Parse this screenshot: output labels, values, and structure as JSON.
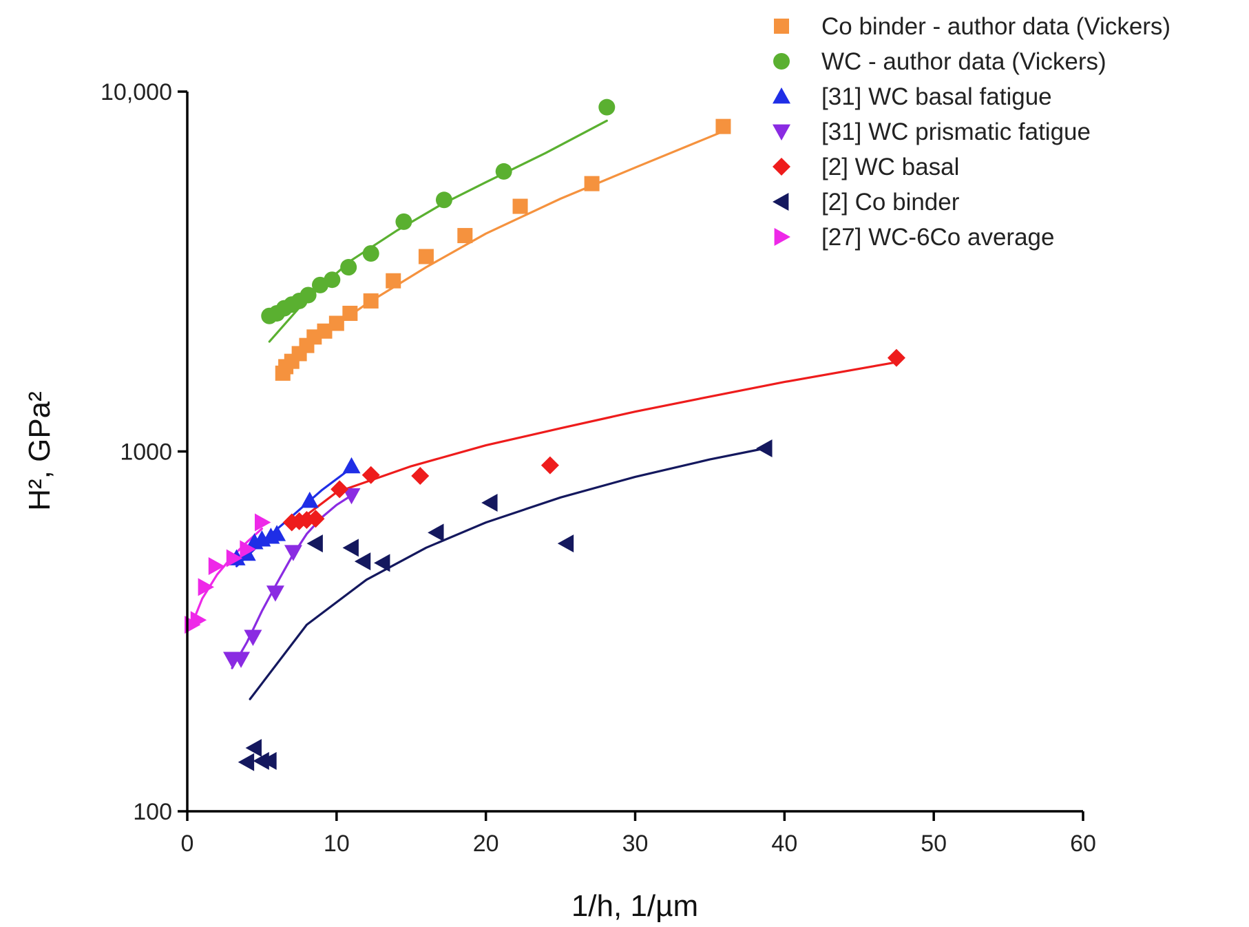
{
  "chart_data": {
    "type": "scatter",
    "title": "",
    "xlabel": "1/h, 1/µm",
    "ylabel": "H², GPa²",
    "xscale": "linear",
    "yscale": "log",
    "xlim": [
      0,
      60
    ],
    "ylim": [
      100,
      10000
    ],
    "x_ticks": [
      0,
      10,
      20,
      30,
      40,
      50,
      60
    ],
    "x_tick_labels": [
      "0",
      "10",
      "20",
      "30",
      "40",
      "50",
      "60"
    ],
    "y_ticks": [
      100,
      1000,
      10000
    ],
    "y_tick_labels": [
      "100",
      "1000",
      "10,000"
    ],
    "grid": false,
    "legend_position": "top-right",
    "series": [
      {
        "name": "Co binder - author data (Vickers)",
        "marker": "square",
        "color": "#f5923e",
        "points": [
          [
            6.4,
            1650
          ],
          [
            6.6,
            1720
          ],
          [
            7.0,
            1780
          ],
          [
            7.5,
            1870
          ],
          [
            8.0,
            1970
          ],
          [
            8.5,
            2080
          ],
          [
            9.2,
            2160
          ],
          [
            10.0,
            2270
          ],
          [
            10.9,
            2420
          ],
          [
            12.3,
            2620
          ],
          [
            13.8,
            2980
          ],
          [
            16.0,
            3480
          ],
          [
            18.6,
            3980
          ],
          [
            22.3,
            4800
          ],
          [
            27.1,
            5550
          ],
          [
            35.9,
            8000
          ]
        ],
        "fit": {
          "x": [
            6.4,
            9,
            12,
            16,
            20,
            25,
            30,
            35.9
          ],
          "y": [
            1650,
            2100,
            2570,
            3250,
            4030,
            5040,
            6150,
            7750
          ]
        }
      },
      {
        "name": "WC - author data (Vickers)",
        "marker": "circle",
        "color": "#5ab030",
        "points": [
          [
            5.5,
            2380
          ],
          [
            6.0,
            2420
          ],
          [
            6.5,
            2500
          ],
          [
            7.0,
            2560
          ],
          [
            7.5,
            2620
          ],
          [
            8.1,
            2720
          ],
          [
            8.9,
            2900
          ],
          [
            9.7,
            3000
          ],
          [
            10.8,
            3250
          ],
          [
            12.3,
            3550
          ],
          [
            14.5,
            4350
          ],
          [
            17.2,
            5000
          ],
          [
            21.2,
            6000
          ],
          [
            28.1,
            9050
          ]
        ],
        "fit": {
          "x": [
            5.5,
            8,
            11,
            14,
            17,
            20,
            24,
            28.1
          ],
          "y": [
            2020,
            2650,
            3400,
            4100,
            4850,
            5600,
            6750,
            8300
          ]
        }
      },
      {
        "name": "[31] WC basal fatigue",
        "marker": "triangle-up",
        "color": "#1f2ee6",
        "points": [
          [
            3.3,
            505
          ],
          [
            4.0,
            520
          ],
          [
            4.5,
            560
          ],
          [
            5.0,
            570
          ],
          [
            5.6,
            580
          ],
          [
            6.0,
            590
          ],
          [
            8.2,
            730
          ],
          [
            11.0,
            910
          ]
        ],
        "fit": {
          "x": [
            3.3,
            5,
            7,
            9,
            11
          ],
          "y": [
            480,
            560,
            660,
            780,
            900
          ]
        }
      },
      {
        "name": "[31] WC prismatic fatigue",
        "marker": "triangle-down",
        "color": "#8a2be2",
        "points": [
          [
            3.0,
            265
          ],
          [
            3.6,
            265
          ],
          [
            4.4,
            305
          ],
          [
            5.9,
            405
          ],
          [
            7.1,
            525
          ],
          [
            11.0,
            755
          ]
        ],
        "fit": {
          "x": [
            3.0,
            4,
            5,
            6,
            7,
            8,
            9,
            10,
            11
          ],
          "y": [
            250,
            295,
            360,
            430,
            510,
            590,
            655,
            710,
            755
          ]
        }
      },
      {
        "name": "[2] WC basal",
        "marker": "diamond",
        "color": "#ee1c1c",
        "points": [
          [
            7.0,
            635
          ],
          [
            7.5,
            640
          ],
          [
            8.0,
            645
          ],
          [
            8.6,
            650
          ],
          [
            10.2,
            785
          ],
          [
            12.3,
            860
          ],
          [
            15.6,
            855
          ],
          [
            24.3,
            915
          ],
          [
            47.5,
            1820
          ]
        ],
        "fit": {
          "x": [
            7,
            10,
            15,
            20,
            25,
            30,
            35,
            40,
            47.5
          ],
          "y": [
            620,
            770,
            910,
            1040,
            1160,
            1290,
            1420,
            1560,
            1770
          ]
        }
      },
      {
        "name": "[2] Co binder",
        "marker": "triangle-left",
        "color": "#14185e",
        "points": [
          [
            4.0,
            137
          ],
          [
            4.5,
            150
          ],
          [
            5.0,
            138
          ],
          [
            5.5,
            138
          ],
          [
            8.6,
            555
          ],
          [
            11.0,
            540
          ],
          [
            11.8,
            495
          ],
          [
            13.1,
            490
          ],
          [
            16.7,
            595
          ],
          [
            20.3,
            720
          ],
          [
            25.4,
            555
          ],
          [
            38.7,
            1020
          ]
        ],
        "fit": {
          "x": [
            4.2,
            8,
            12,
            16,
            20,
            25,
            30,
            35,
            38.7
          ],
          "y": [
            205,
            330,
            440,
            540,
            635,
            745,
            850,
            950,
            1020
          ]
        }
      },
      {
        "name": "[27] WC-6Co average",
        "marker": "triangle-right",
        "color": "#ee28e8",
        "points": [
          [
            0.3,
            330
          ],
          [
            0.7,
            340
          ],
          [
            1.2,
            420
          ],
          [
            1.9,
            480
          ],
          [
            3.1,
            505
          ],
          [
            4.0,
            535
          ],
          [
            5.0,
            635
          ]
        ],
        "fit": {
          "x": [
            0.3,
            1,
            2,
            3,
            4,
            5
          ],
          "y": [
            330,
            390,
            455,
            510,
            560,
            610
          ]
        }
      }
    ]
  }
}
